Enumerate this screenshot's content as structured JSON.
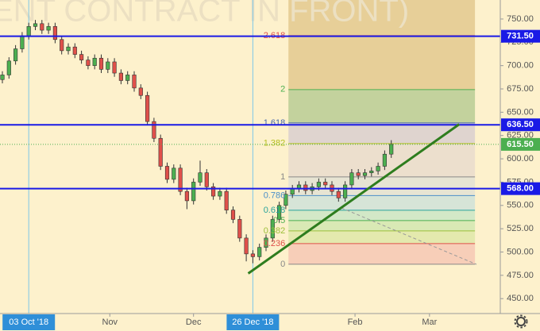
{
  "chart_data": {
    "type": "candlestick",
    "watermark": "ENT CONTRACT IN FRONT)",
    "xlim": [
      0,
      76
    ],
    "ylim": [
      434,
      770.4
    ],
    "xticks": [
      {
        "value": 4,
        "label": "03 Oct '18",
        "highlight": true
      },
      {
        "value": 16.3,
        "label": "Nov"
      },
      {
        "value": 29,
        "label": "Dec"
      },
      {
        "value": 38,
        "label": "26 Dec '18",
        "highlight": true
      },
      {
        "value": 53.5,
        "label": "Feb"
      },
      {
        "value": 64.8,
        "label": "Mar"
      }
    ],
    "yticks": [
      {
        "value": 450,
        "label": "450.00"
      },
      {
        "value": 475,
        "label": "475.00"
      },
      {
        "value": 500,
        "label": "500.00"
      },
      {
        "value": 525,
        "label": "525.00"
      },
      {
        "value": 550,
        "label": "550.00"
      },
      {
        "value": 575,
        "label": "575.00"
      },
      {
        "value": 600,
        "label": "600.00"
      },
      {
        "value": 625,
        "label": "625.00"
      },
      {
        "value": 650,
        "label": "650.00"
      },
      {
        "value": 675,
        "label": "675.00"
      },
      {
        "value": 700,
        "label": "700.00"
      },
      {
        "value": 725,
        "label": "725.00"
      },
      {
        "value": 750,
        "label": "750.00"
      }
    ],
    "up_color": "#4caf50",
    "down_color": "#e0504a",
    "open": [
      685,
      690,
      705,
      718,
      732,
      742,
      745,
      738,
      742,
      728,
      716,
      720,
      712,
      706,
      700,
      708,
      696,
      704,
      692,
      684,
      690,
      676,
      668,
      640,
      622,
      592,
      578,
      590,
      565,
      555,
      575,
      585,
      570,
      560,
      565,
      545,
      535,
      515,
      498,
      495,
      505,
      515,
      535,
      550,
      562,
      568,
      572,
      566,
      570,
      575,
      572,
      565,
      558,
      572,
      585,
      582,
      585,
      587,
      592,
      605
    ],
    "high": [
      694,
      709,
      722,
      736,
      746,
      749,
      749,
      746,
      746,
      732,
      724,
      724,
      716,
      710,
      712,
      712,
      708,
      708,
      696,
      694,
      694,
      680,
      672,
      644,
      626,
      596,
      594,
      594,
      569,
      579,
      598,
      589,
      574,
      569,
      569,
      549,
      539,
      519,
      502,
      509,
      519,
      539,
      554,
      566,
      572,
      576,
      576,
      574,
      579,
      579,
      576,
      569,
      576,
      589,
      589,
      589,
      591,
      596,
      609,
      620
    ],
    "low": [
      681,
      686,
      701,
      714,
      728,
      738,
      734,
      734,
      724,
      712,
      712,
      708,
      702,
      696,
      696,
      692,
      692,
      688,
      680,
      680,
      672,
      664,
      636,
      618,
      588,
      574,
      574,
      561,
      546,
      551,
      571,
      566,
      556,
      556,
      541,
      531,
      511,
      490,
      488,
      491,
      501,
      511,
      531,
      546,
      558,
      564,
      562,
      562,
      566,
      568,
      561,
      554,
      554,
      568,
      578,
      578,
      581,
      583,
      588,
      601
    ],
    "close": [
      690,
      705,
      718,
      732,
      742,
      745,
      738,
      742,
      728,
      716,
      720,
      712,
      706,
      700,
      708,
      696,
      704,
      692,
      684,
      690,
      676,
      668,
      640,
      622,
      592,
      578,
      590,
      565,
      555,
      575,
      585,
      570,
      560,
      565,
      545,
      535,
      515,
      498,
      495,
      505,
      515,
      535,
      550,
      562,
      568,
      572,
      566,
      570,
      575,
      572,
      565,
      558,
      572,
      585,
      582,
      585,
      587,
      592,
      605,
      615.5
    ],
    "price_lines": [
      {
        "value": 731.5,
        "label": "731.50",
        "color": "#1a1ae6"
      },
      {
        "value": 636.5,
        "label": "636.50",
        "color": "#1a1ae6"
      },
      {
        "value": 568,
        "label": "568.00",
        "color": "#1a1ae6"
      }
    ],
    "last_price": {
      "value": 615.5,
      "label": "615.50",
      "color": "#4caf50"
    },
    "trend_line": {
      "x": [
        37.3,
        69.3
      ],
      "y": [
        477,
        637
      ],
      "color": "#2e7d1e"
    },
    "fib": {
      "x_start": 43.4,
      "x_end": 71.7,
      "price0": 486.9,
      "price1": 580.6,
      "levels": [
        {
          "value": 0,
          "color": "#888888",
          "fill": "#f6c8b4"
        },
        {
          "value": 0.236,
          "color": "#e0504a",
          "fill": "#dfe8a8"
        },
        {
          "value": 0.382,
          "color": "#9cbf3a",
          "fill": "#d2e8b0"
        },
        {
          "value": 0.5,
          "color": "#4caf50",
          "fill": "#cbe6c6"
        },
        {
          "value": 0.618,
          "color": "#29a39a",
          "fill": "#cfe2d8"
        },
        {
          "value": 0.786,
          "color": "#4a90c8",
          "fill": "#e3e2d4"
        },
        {
          "value": 1,
          "color": "#888888",
          "fill": "#e9dccc"
        },
        {
          "value": 1.382,
          "color": "#b5c020",
          "fill": "#d9cfcf"
        },
        {
          "value": 1.618,
          "color": "#4466aa",
          "fill": "#b9cd94"
        },
        {
          "value": 2,
          "color": "#4caf50",
          "fill": "#e3c98e"
        },
        {
          "value": 2.618,
          "color": "#e0504a",
          "fill": "#e3c98e"
        }
      ]
    }
  }
}
